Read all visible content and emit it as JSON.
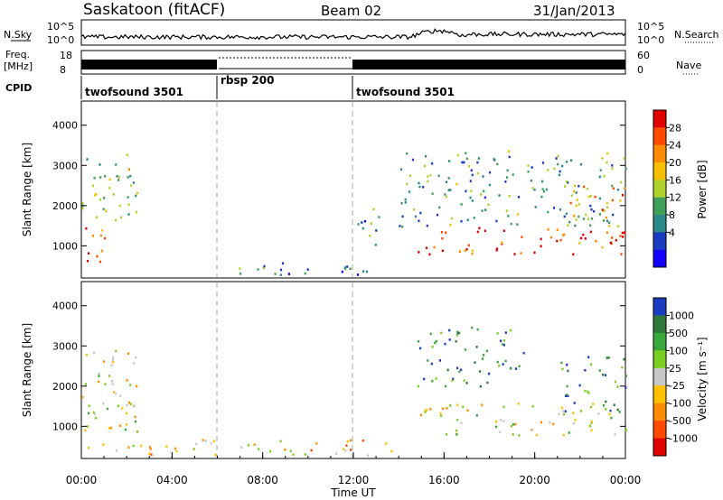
{
  "header": {
    "station": "Saskatoon (fitACF)",
    "beam": "Beam 02",
    "date": "31/Jan/2013"
  },
  "panels": {
    "nsky_label": "N.Sky",
    "nsky_ticks": [
      "10^5",
      "10^0"
    ],
    "nsearch_label": "N.Search",
    "nsearch_ticks": [
      "10^5",
      "10^0"
    ],
    "freq_label": "Freq.",
    "freq_unit": "[MHz]",
    "freq_ticks": [
      "18",
      "8"
    ],
    "nave_label": "Nave",
    "nave_ticks": [
      "60",
      "0"
    ],
    "cpid_label": "CPID",
    "cpid_segments": [
      {
        "label": "twofsound 3501",
        "start_h": 0,
        "end_h": 6
      },
      {
        "label": "rbsp 200",
        "start_h": 6,
        "end_h": 12
      },
      {
        "label": "twofsound 3501",
        "start_h": 12,
        "end_h": 24
      }
    ]
  },
  "chart_data": [
    {
      "type": "heatmap",
      "name": "power",
      "ylabel": "Slant Range [km]",
      "yticks": [
        1000,
        2000,
        3000,
        4000
      ],
      "ylim": [
        200,
        4600
      ],
      "xlim": [
        0,
        24
      ],
      "colorbar_label": "Power [dB]",
      "colorbar_ticks": [
        "28",
        "24",
        "20",
        "16",
        "12",
        "8",
        "4"
      ],
      "colorbar_colors": [
        "#e00000",
        "#ff4a00",
        "#ff8c00",
        "#f5c000",
        "#b0d02a",
        "#3fa05a",
        "#2a8a8a",
        "#1a3cc0",
        "#1400ff"
      ],
      "regions": [
        {
          "x": [
            0.0,
            1.0
          ],
          "y": [
            400,
            1600
          ],
          "level": 0.8
        },
        {
          "x": [
            0.0,
            2.5
          ],
          "y": [
            1500,
            3300
          ],
          "level": 0.45
        },
        {
          "x": [
            6.0,
            14.0
          ],
          "y": [
            300,
            600
          ],
          "level": 0.25
        },
        {
          "x": [
            14.8,
            24.0
          ],
          "y": [
            800,
            1500
          ],
          "level": 0.85
        },
        {
          "x": [
            14.0,
            24.0
          ],
          "y": [
            1500,
            3400
          ],
          "level": 0.35
        },
        {
          "x": [
            21.5,
            24.0
          ],
          "y": [
            1500,
            2500
          ],
          "level": 0.7
        },
        {
          "x": [
            12.0,
            13.2
          ],
          "y": [
            1000,
            2000
          ],
          "level": 0.3
        }
      ]
    },
    {
      "type": "heatmap",
      "name": "velocity",
      "ylabel": "Slant Range [km]",
      "yticks": [
        1000,
        2000,
        3000,
        4000
      ],
      "ylim": [
        200,
        4600
      ],
      "xlim": [
        0,
        24
      ],
      "colorbar_label": "Velocity [m s⁻¹]",
      "colorbar_ticks": [
        "1000",
        "500",
        "100",
        "25",
        "-25",
        "-100",
        "-500",
        "-1000"
      ],
      "colorbar_colors": [
        "#1a3cc0",
        "#2f7a3a",
        "#3aa83a",
        "#7ad020",
        "#c8c8c8",
        "#ffc000",
        "#ff8c00",
        "#ff4a00",
        "#e00000"
      ],
      "regions": [
        {
          "x": [
            0.0,
            2.5
          ],
          "y": [
            400,
            3000
          ],
          "level": 0.5
        },
        {
          "x": [
            2.0,
            14.0
          ],
          "y": [
            300,
            700
          ],
          "level": 0.4
        },
        {
          "x": [
            14.8,
            24.0
          ],
          "y": [
            800,
            1600
          ],
          "level": 0.5
        },
        {
          "x": [
            14.8,
            19.5
          ],
          "y": [
            2000,
            3500
          ],
          "level": 0.8
        },
        {
          "x": [
            21.0,
            24.0
          ],
          "y": [
            1400,
            2800
          ],
          "level": 0.8
        }
      ]
    }
  ],
  "xaxis": {
    "label": "Time UT",
    "ticks": [
      "00:00",
      "04:00",
      "08:00",
      "12:00",
      "16:00",
      "20:00",
      "00:00"
    ]
  }
}
